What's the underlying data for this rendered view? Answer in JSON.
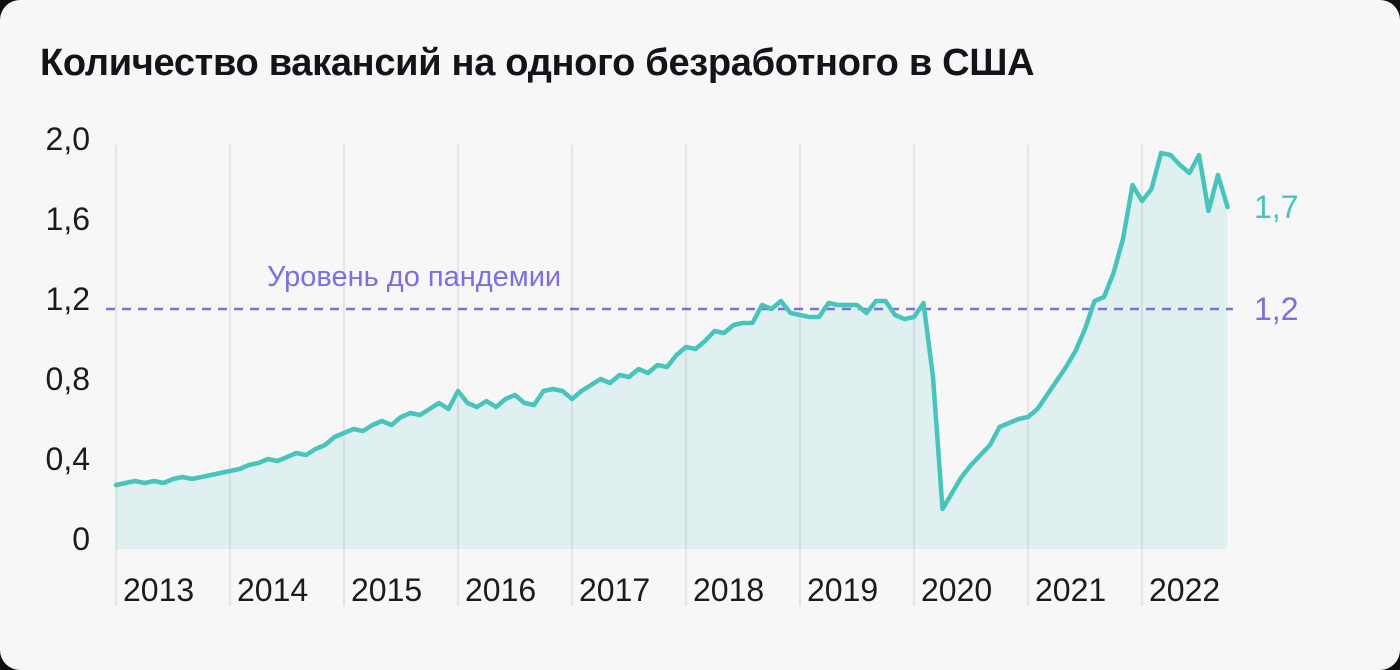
{
  "title": "Количество вакансий на одного безработного в США",
  "annotation": {
    "label": "Уровень до пандемии",
    "level_label": "1,2"
  },
  "end_label": "1,7",
  "y_axis": {
    "ticks": [
      "2,0",
      "1,6",
      "1,2",
      "0,8",
      "0,4",
      "0"
    ],
    "values": [
      2.0,
      1.6,
      1.2,
      0.8,
      0.4,
      0
    ]
  },
  "x_axis": {
    "years": [
      "2013",
      "2014",
      "2015",
      "2016",
      "2017",
      "2018",
      "2019",
      "2020",
      "2021",
      "2022"
    ]
  },
  "colors": {
    "line": "#47C4BB",
    "fill": "rgba(71,196,187,0.13)",
    "pre_pandemic": "#7B70DC",
    "gridline": "#E5E5E8",
    "text": "#1A1B1F",
    "background": "#F7F7F8"
  },
  "chart_data": {
    "type": "area",
    "title": "Количество вакансий на одного безработного в США",
    "frequency": "monthly",
    "x_start": "2013-01",
    "x_end": "2022-10",
    "ylim": [
      0,
      2.0
    ],
    "grid": "vertical-years",
    "pre_pandemic_level": 1.2,
    "last_value": 1.71,
    "values": [
      0.32,
      0.33,
      0.34,
      0.33,
      0.34,
      0.33,
      0.35,
      0.36,
      0.35,
      0.36,
      0.37,
      0.38,
      0.39,
      0.4,
      0.42,
      0.43,
      0.45,
      0.44,
      0.46,
      0.48,
      0.47,
      0.5,
      0.52,
      0.56,
      0.58,
      0.6,
      0.59,
      0.62,
      0.64,
      0.62,
      0.66,
      0.68,
      0.67,
      0.7,
      0.73,
      0.7,
      0.79,
      0.73,
      0.71,
      0.74,
      0.71,
      0.75,
      0.77,
      0.73,
      0.72,
      0.79,
      0.8,
      0.79,
      0.75,
      0.79,
      0.82,
      0.85,
      0.83,
      0.87,
      0.86,
      0.9,
      0.88,
      0.92,
      0.91,
      0.97,
      1.01,
      1.0,
      1.04,
      1.09,
      1.08,
      1.12,
      1.13,
      1.13,
      1.22,
      1.2,
      1.24,
      1.18,
      1.17,
      1.16,
      1.16,
      1.23,
      1.22,
      1.22,
      1.22,
      1.18,
      1.24,
      1.24,
      1.17,
      1.15,
      1.16,
      1.23,
      0.86,
      0.2,
      0.28,
      0.36,
      0.42,
      0.47,
      0.52,
      0.61,
      0.63,
      0.65,
      0.66,
      0.7,
      0.77,
      0.84,
      0.91,
      0.99,
      1.1,
      1.24,
      1.26,
      1.38,
      1.55,
      1.82,
      1.74,
      1.8,
      1.98,
      1.97,
      1.92,
      1.88,
      1.97,
      1.69,
      1.87,
      1.71
    ]
  }
}
